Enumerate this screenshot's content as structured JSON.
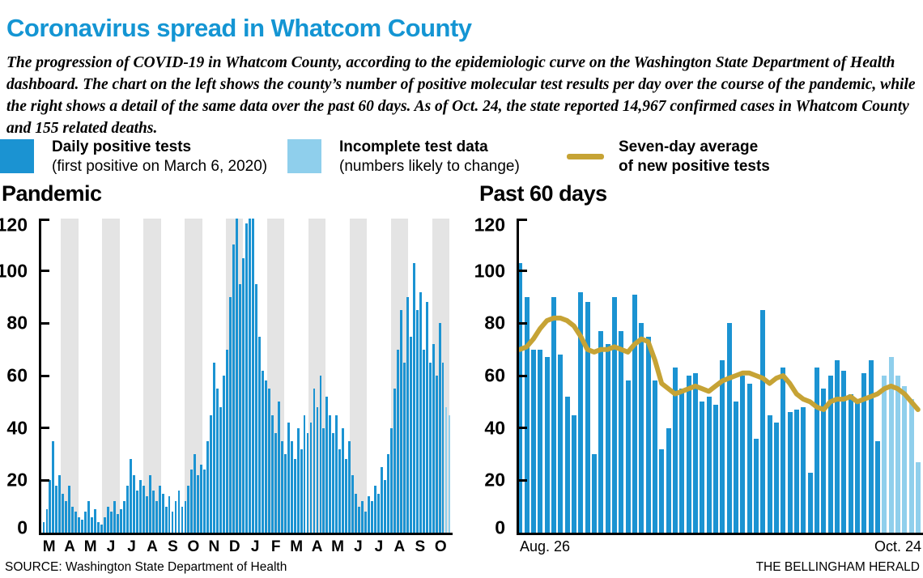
{
  "header": {
    "title": "Coronavirus spread in Whatcom County",
    "subtitle": "The progression of COVID-19 in Whatcom County, according to the epidemiologic curve on the Washington State Department of Health dashboard. The chart on the left shows the county’s number of positive molecular test results per day over the course of the pandemic, while the right shows a detail of the same data over the past 60 days. As of Oct. 24, the state reported 14,967 confirmed cases in Whatcom County and 155 related deaths."
  },
  "legend": {
    "daily": {
      "label": "Daily positive tests",
      "sub": "(first positive on March 6, 2020)"
    },
    "incomplete": {
      "label": "Incomplete test data",
      "sub": "(numbers likely to change)"
    },
    "average": {
      "label": "Seven-day average",
      "sub": "of new positive tests"
    }
  },
  "colors": {
    "title_blue": "#1495d3",
    "bar_dark": "#1b93d2",
    "bar_light": "#8fcfec",
    "avg_line": "#c6a335",
    "band_gray": "#e4e4e4"
  },
  "footer": {
    "source": "SOURCE: Washington State Department of Health",
    "credit": "THE BELLINGHAM HERALD"
  },
  "chart_data": [
    {
      "type": "bar",
      "title": "Pandemic",
      "ylim": [
        0,
        120
      ],
      "yticks": [
        0,
        20,
        40,
        60,
        80,
        100,
        120
      ],
      "grid": "alternating month bands",
      "x_tick_labels": [
        "M",
        "A",
        "M",
        "J",
        "J",
        "A",
        "S",
        "O",
        "N",
        "D",
        "J",
        "F",
        "M",
        "A",
        "M",
        "J",
        "J",
        "A",
        "S",
        "O"
      ],
      "x_range": "March 2020 – October 2021, daily positive tests (sampled)",
      "values": [
        2,
        4,
        9,
        20,
        35,
        18,
        22,
        15,
        12,
        18,
        10,
        8,
        6,
        5,
        8,
        12,
        6,
        9,
        4,
        3,
        6,
        10,
        8,
        12,
        7,
        9,
        12,
        18,
        28,
        22,
        16,
        20,
        18,
        14,
        22,
        16,
        12,
        18,
        15,
        10,
        14,
        8,
        12,
        16,
        10,
        12,
        18,
        24,
        30,
        22,
        26,
        24,
        35,
        45,
        65,
        55,
        48,
        60,
        70,
        90,
        110,
        120,
        95,
        105,
        118,
        120,
        120,
        95,
        75,
        62,
        58,
        55,
        45,
        38,
        50,
        35,
        30,
        42,
        35,
        28,
        40,
        32,
        45,
        38,
        42,
        55,
        48,
        60,
        40,
        52,
        45,
        38,
        45,
        32,
        40,
        28,
        35,
        22,
        15,
        10,
        12,
        8,
        14,
        12,
        18,
        15,
        25,
        20,
        30,
        40,
        55,
        70,
        85,
        65,
        90,
        75,
        103,
        85,
        92,
        70,
        88,
        65,
        72,
        60,
        80,
        65,
        48,
        45
      ],
      "incomplete_from_index": 126
    },
    {
      "type": "bar+line",
      "title": "Past 60 days",
      "ylim": [
        0,
        120
      ],
      "yticks": [
        0,
        20,
        40,
        60,
        80,
        100,
        120
      ],
      "x_start_label": "Aug. 26",
      "x_end_label": "Oct. 24",
      "values": [
        103,
        90,
        70,
        70,
        67,
        90,
        68,
        52,
        45,
        92,
        88,
        30,
        77,
        72,
        90,
        77,
        58,
        91,
        80,
        75,
        58,
        32,
        40,
        63,
        55,
        60,
        61,
        50,
        52,
        49,
        66,
        80,
        50,
        60,
        57,
        36,
        85,
        45,
        42,
        63,
        46,
        47,
        48,
        23,
        63,
        55,
        60,
        66,
        62,
        53,
        51,
        61,
        66,
        35,
        60,
        67,
        60,
        56,
        51,
        27
      ],
      "incomplete_from_index": 54,
      "series": [
        {
          "name": "Seven-day average of new positive tests",
          "values": [
            70,
            71,
            74,
            78,
            81,
            82,
            82,
            81,
            79,
            75,
            70,
            69,
            70,
            70,
            71,
            70,
            69,
            72,
            74,
            73,
            66,
            57,
            55,
            53,
            54,
            55,
            56,
            55,
            54,
            56,
            58,
            59,
            60,
            61,
            61,
            60,
            59,
            57,
            59,
            60,
            57,
            53,
            51,
            50,
            48,
            47,
            50,
            51,
            51,
            52,
            50,
            51,
            52,
            53,
            55,
            56,
            55,
            53,
            50,
            47
          ]
        }
      ]
    }
  ]
}
